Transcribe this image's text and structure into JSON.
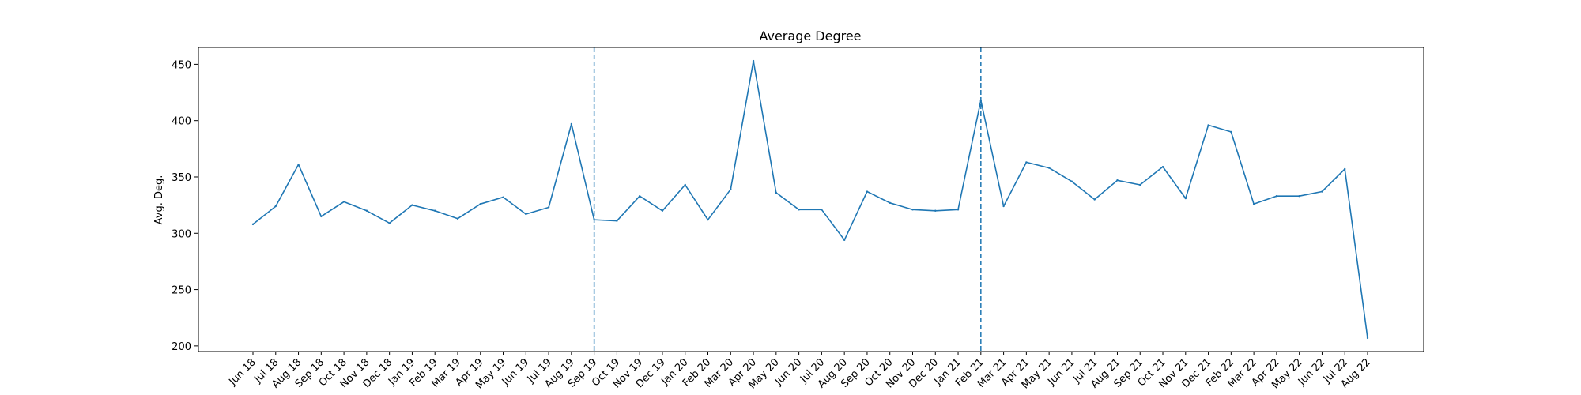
{
  "chart_data": {
    "type": "line",
    "title": "Average Degree",
    "xlabel": "",
    "ylabel": "Avg. Deg.",
    "ylim": [
      195,
      465
    ],
    "yticks": [
      200,
      250,
      300,
      350,
      400,
      450
    ],
    "grid": false,
    "line_color": "#1f77b4",
    "categories": [
      "Jun 18",
      "Jul 18",
      "Aug 18",
      "Sep 18",
      "Oct 18",
      "Nov 18",
      "Dec 18",
      "Jan 19",
      "Feb 19",
      "Mar 19",
      "Apr 19",
      "May 19",
      "Jun 19",
      "Jul 19",
      "Aug 19",
      "Sep 19",
      "Oct 19",
      "Nov 19",
      "Dec 19",
      "Jan 20",
      "Feb 20",
      "Mar 20",
      "Apr 20",
      "May 20",
      "Jun 20",
      "Jul 20",
      "Aug 20",
      "Sep 20",
      "Oct 20",
      "Nov 20",
      "Dec 20",
      "Jan 21",
      "Feb 21",
      "Mar 21",
      "Apr 21",
      "May 21",
      "Jun 21",
      "Jul 21",
      "Aug 21",
      "Sep 21",
      "Oct 21",
      "Nov 21",
      "Dec 21",
      "Feb 22",
      "Mar 22",
      "Apr 22",
      "May 22",
      "Jun 22",
      "Jul 22",
      "Aug 22"
    ],
    "series": [
      {
        "values": [
          308,
          324,
          361,
          315,
          328,
          320,
          309,
          325,
          320,
          313,
          326,
          332,
          317,
          323,
          397,
          312,
          311,
          333,
          320,
          343,
          312,
          339,
          453,
          336,
          321,
          321,
          294,
          337,
          327,
          321,
          320,
          321,
          418,
          324,
          363,
          358,
          346,
          330,
          347,
          343,
          359,
          331,
          396,
          390,
          326,
          333,
          333,
          337,
          357,
          207
        ]
      }
    ],
    "vlines": [
      {
        "at_category": "Sep 19",
        "style": "dashed"
      },
      {
        "at_category": "Feb 21",
        "style": "dashed"
      }
    ]
  }
}
